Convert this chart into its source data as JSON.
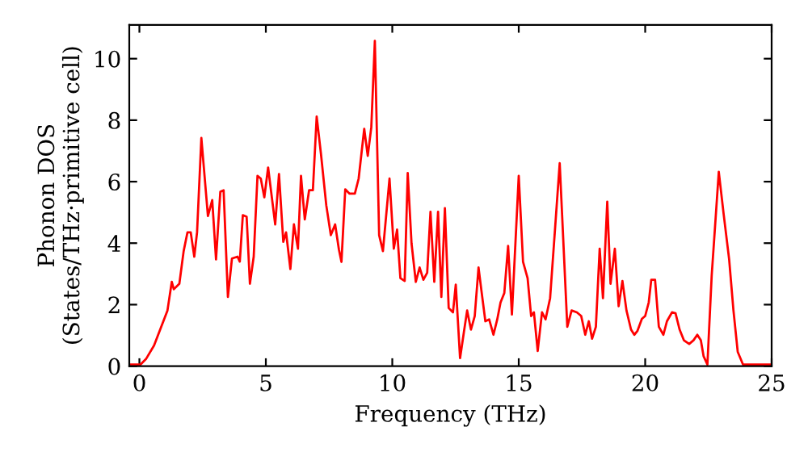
{
  "chart_data": {
    "type": "line",
    "xlabel": "Frequency (THz)",
    "ylabel": "Phonon DOS\n(States/THz·primitive cell)",
    "xlim": [
      -0.4,
      25
    ],
    "ylim": [
      0,
      11.1
    ],
    "xticks": [
      0,
      5,
      10,
      15,
      20,
      25
    ],
    "yticks": [
      0,
      2,
      4,
      6,
      8,
      10
    ],
    "grid": false,
    "marker": "none",
    "line_style": "solid",
    "series": [
      {
        "color": "#ff0000",
        "x": [
          -0.38,
          0.04,
          0.26,
          0.58,
          1.11,
          1.28,
          1.36,
          1.58,
          1.75,
          1.9,
          2.03,
          2.17,
          2.28,
          2.45,
          2.71,
          2.88,
          3.03,
          3.2,
          3.33,
          3.5,
          3.66,
          3.88,
          3.97,
          4.09,
          4.24,
          4.37,
          4.52,
          4.67,
          4.8,
          4.94,
          5.09,
          5.37,
          5.52,
          5.69,
          5.8,
          5.97,
          6.11,
          6.27,
          6.39,
          6.54,
          6.71,
          6.86,
          7.01,
          7.18,
          7.39,
          7.57,
          7.74,
          7.89,
          7.99,
          8.14,
          8.31,
          8.52,
          8.67,
          8.89,
          9.03,
          9.17,
          9.31,
          9.48,
          9.63,
          9.89,
          10.06,
          10.19,
          10.32,
          10.49,
          10.61,
          10.76,
          10.93,
          11.08,
          11.23,
          11.38,
          11.51,
          11.66,
          11.81,
          11.94,
          12.08,
          12.23,
          12.4,
          12.51,
          12.68,
          12.83,
          12.96,
          13.11,
          13.26,
          13.41,
          13.53,
          13.68,
          13.83,
          14.0,
          14.15,
          14.28,
          14.43,
          14.58,
          14.73,
          15.0,
          15.17,
          15.35,
          15.49,
          15.6,
          15.75,
          15.92,
          16.06,
          16.24,
          16.62,
          16.92,
          17.09,
          17.3,
          17.47,
          17.63,
          17.77,
          17.9,
          18.05,
          18.2,
          18.33,
          18.5,
          18.63,
          18.8,
          18.95,
          19.1,
          19.26,
          19.44,
          19.57,
          19.69,
          19.87,
          20.0,
          20.14,
          20.24,
          20.39,
          20.54,
          20.72,
          20.86,
          21.06,
          21.2,
          21.36,
          21.53,
          21.74,
          21.91,
          22.06,
          22.2,
          22.31,
          22.46,
          22.63,
          22.91,
          23.1,
          23.32,
          23.49,
          23.66,
          23.87,
          24.98
        ],
        "values": [
          0.05,
          0.05,
          0.23,
          0.67,
          1.81,
          2.74,
          2.5,
          2.68,
          3.74,
          4.35,
          4.35,
          3.56,
          4.35,
          7.42,
          4.88,
          5.4,
          3.47,
          5.67,
          5.72,
          2.25,
          3.5,
          3.56,
          3.4,
          4.91,
          4.86,
          2.68,
          3.56,
          6.19,
          6.1,
          5.49,
          6.46,
          4.61,
          6.25,
          4.04,
          4.35,
          3.16,
          4.61,
          3.82,
          6.19,
          4.77,
          5.72,
          5.72,
          8.12,
          6.9,
          5.23,
          4.26,
          4.61,
          3.79,
          3.39,
          5.75,
          5.61,
          5.61,
          6.1,
          7.72,
          6.84,
          7.77,
          10.58,
          4.26,
          3.74,
          6.1,
          3.82,
          4.44,
          2.86,
          2.77,
          6.28,
          4.0,
          2.74,
          3.21,
          2.81,
          3.04,
          5.02,
          2.74,
          5.02,
          2.25,
          5.14,
          1.89,
          1.75,
          2.65,
          0.26,
          1.1,
          1.81,
          1.19,
          1.63,
          3.21,
          2.42,
          1.46,
          1.52,
          1.02,
          1.52,
          2.07,
          2.38,
          3.91,
          1.68,
          6.19,
          3.39,
          2.86,
          1.63,
          1.75,
          0.49,
          1.75,
          1.52,
          2.21,
          6.6,
          1.28,
          1.81,
          1.75,
          1.63,
          1.02,
          1.46,
          0.89,
          1.28,
          3.82,
          2.21,
          5.35,
          2.68,
          3.82,
          1.95,
          2.77,
          1.81,
          1.19,
          1.02,
          1.14,
          1.54,
          1.63,
          2.07,
          2.81,
          2.81,
          1.28,
          1.02,
          1.46,
          1.75,
          1.72,
          1.19,
          0.84,
          0.72,
          0.84,
          1.02,
          0.84,
          0.32,
          0.05,
          2.95,
          6.32,
          4.96,
          3.47,
          1.81,
          0.46,
          0.05,
          0.05
        ]
      }
    ]
  }
}
